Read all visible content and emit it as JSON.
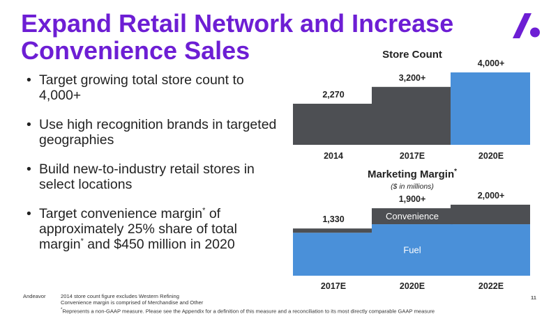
{
  "title_lines": [
    "Expand Retail Network and Increase",
    "Convenience Sales"
  ],
  "bullets": [
    {
      "text": "Target growing total store count to 4,000+"
    },
    {
      "text": "Use high recognition brands in targeted geographies"
    },
    {
      "text": "Build new-to-industry retail stores in select locations"
    },
    {
      "text_parts": [
        "Target convenience margin",
        " of approximately 25% share of total margin",
        " and $450 million in 2020"
      ],
      "sup": "*"
    }
  ],
  "chart_data": [
    {
      "type": "bar",
      "title": "Store Count",
      "categories": [
        "2014",
        "2017E",
        "2020E"
      ],
      "values": [
        2270,
        3200,
        4000
      ],
      "value_labels": [
        "2,270",
        "3,200+",
        "4,000+"
      ],
      "bar_colors": [
        "#4d4f53",
        "#4d4f53",
        "#4a90d9"
      ],
      "ylim": [
        0,
        4000
      ]
    },
    {
      "type": "bar",
      "stacked": true,
      "title": "Marketing Margin",
      "title_sup": "*",
      "subtitle": "($ in millions)",
      "categories": [
        "2017E",
        "2020E",
        "2022E"
      ],
      "series": [
        {
          "name": "Fuel",
          "values": [
            1210,
            1450,
            1450
          ],
          "color": "#4a90d9"
        },
        {
          "name": "Convenience",
          "values": [
            120,
            450,
            550
          ],
          "color": "#4d4f53"
        }
      ],
      "totals": [
        1330,
        1900,
        2000
      ],
      "total_labels": [
        "1,330",
        "1,900+",
        "2,000+"
      ],
      "segment_labels_on_category": "2020E",
      "ylim": [
        0,
        2000
      ]
    }
  ],
  "footer": {
    "brand": "Andeavor",
    "notes": [
      "2014 store count figure excludes Western Refining",
      "Convenience margin is comprised of Merchandise and Other",
      "Represents a non-GAAP measure. Please see the Appendix for a definition of this measure and a reconciliation to its most directly comparable GAAP measure"
    ],
    "notes_marker": "*",
    "page": "11"
  },
  "colors": {
    "accent": "#6d1ed4",
    "dark_bar": "#4d4f53",
    "blue_bar": "#4a90d9"
  }
}
